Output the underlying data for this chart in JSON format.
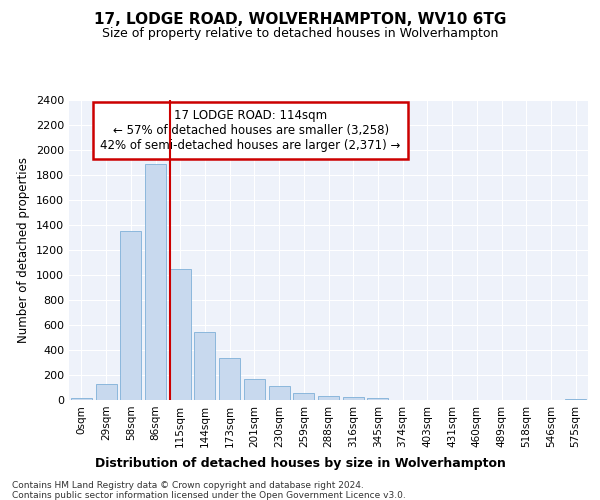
{
  "title": "17, LODGE ROAD, WOLVERHAMPTON, WV10 6TG",
  "subtitle": "Size of property relative to detached houses in Wolverhampton",
  "xlabel": "Distribution of detached houses by size in Wolverhampton",
  "ylabel": "Number of detached properties",
  "bin_labels": [
    "0sqm",
    "29sqm",
    "58sqm",
    "86sqm",
    "115sqm",
    "144sqm",
    "173sqm",
    "201sqm",
    "230sqm",
    "259sqm",
    "288sqm",
    "316sqm",
    "345sqm",
    "374sqm",
    "403sqm",
    "431sqm",
    "460sqm",
    "489sqm",
    "518sqm",
    "546sqm",
    "575sqm"
  ],
  "bar_values": [
    15,
    130,
    1350,
    1890,
    1045,
    545,
    335,
    165,
    110,
    60,
    35,
    25,
    15,
    0,
    0,
    0,
    0,
    0,
    0,
    0,
    10
  ],
  "bar_color": "#c8d9ee",
  "bar_edgecolor": "#7fb0d8",
  "vline_x_index": 4,
  "vline_color": "#cc0000",
  "annotation_title": "17 LODGE ROAD: 114sqm",
  "annotation_line1": "← 57% of detached houses are smaller (3,258)",
  "annotation_line2": "42% of semi-detached houses are larger (2,371) →",
  "annotation_box_color": "#ffffff",
  "annotation_box_edgecolor": "#cc0000",
  "ylim": [
    0,
    2400
  ],
  "yticks": [
    0,
    200,
    400,
    600,
    800,
    1000,
    1200,
    1400,
    1600,
    1800,
    2000,
    2200,
    2400
  ],
  "background_color": "#eef2fa",
  "grid_color": "#ffffff",
  "footer1": "Contains HM Land Registry data © Crown copyright and database right 2024.",
  "footer2": "Contains public sector information licensed under the Open Government Licence v3.0."
}
